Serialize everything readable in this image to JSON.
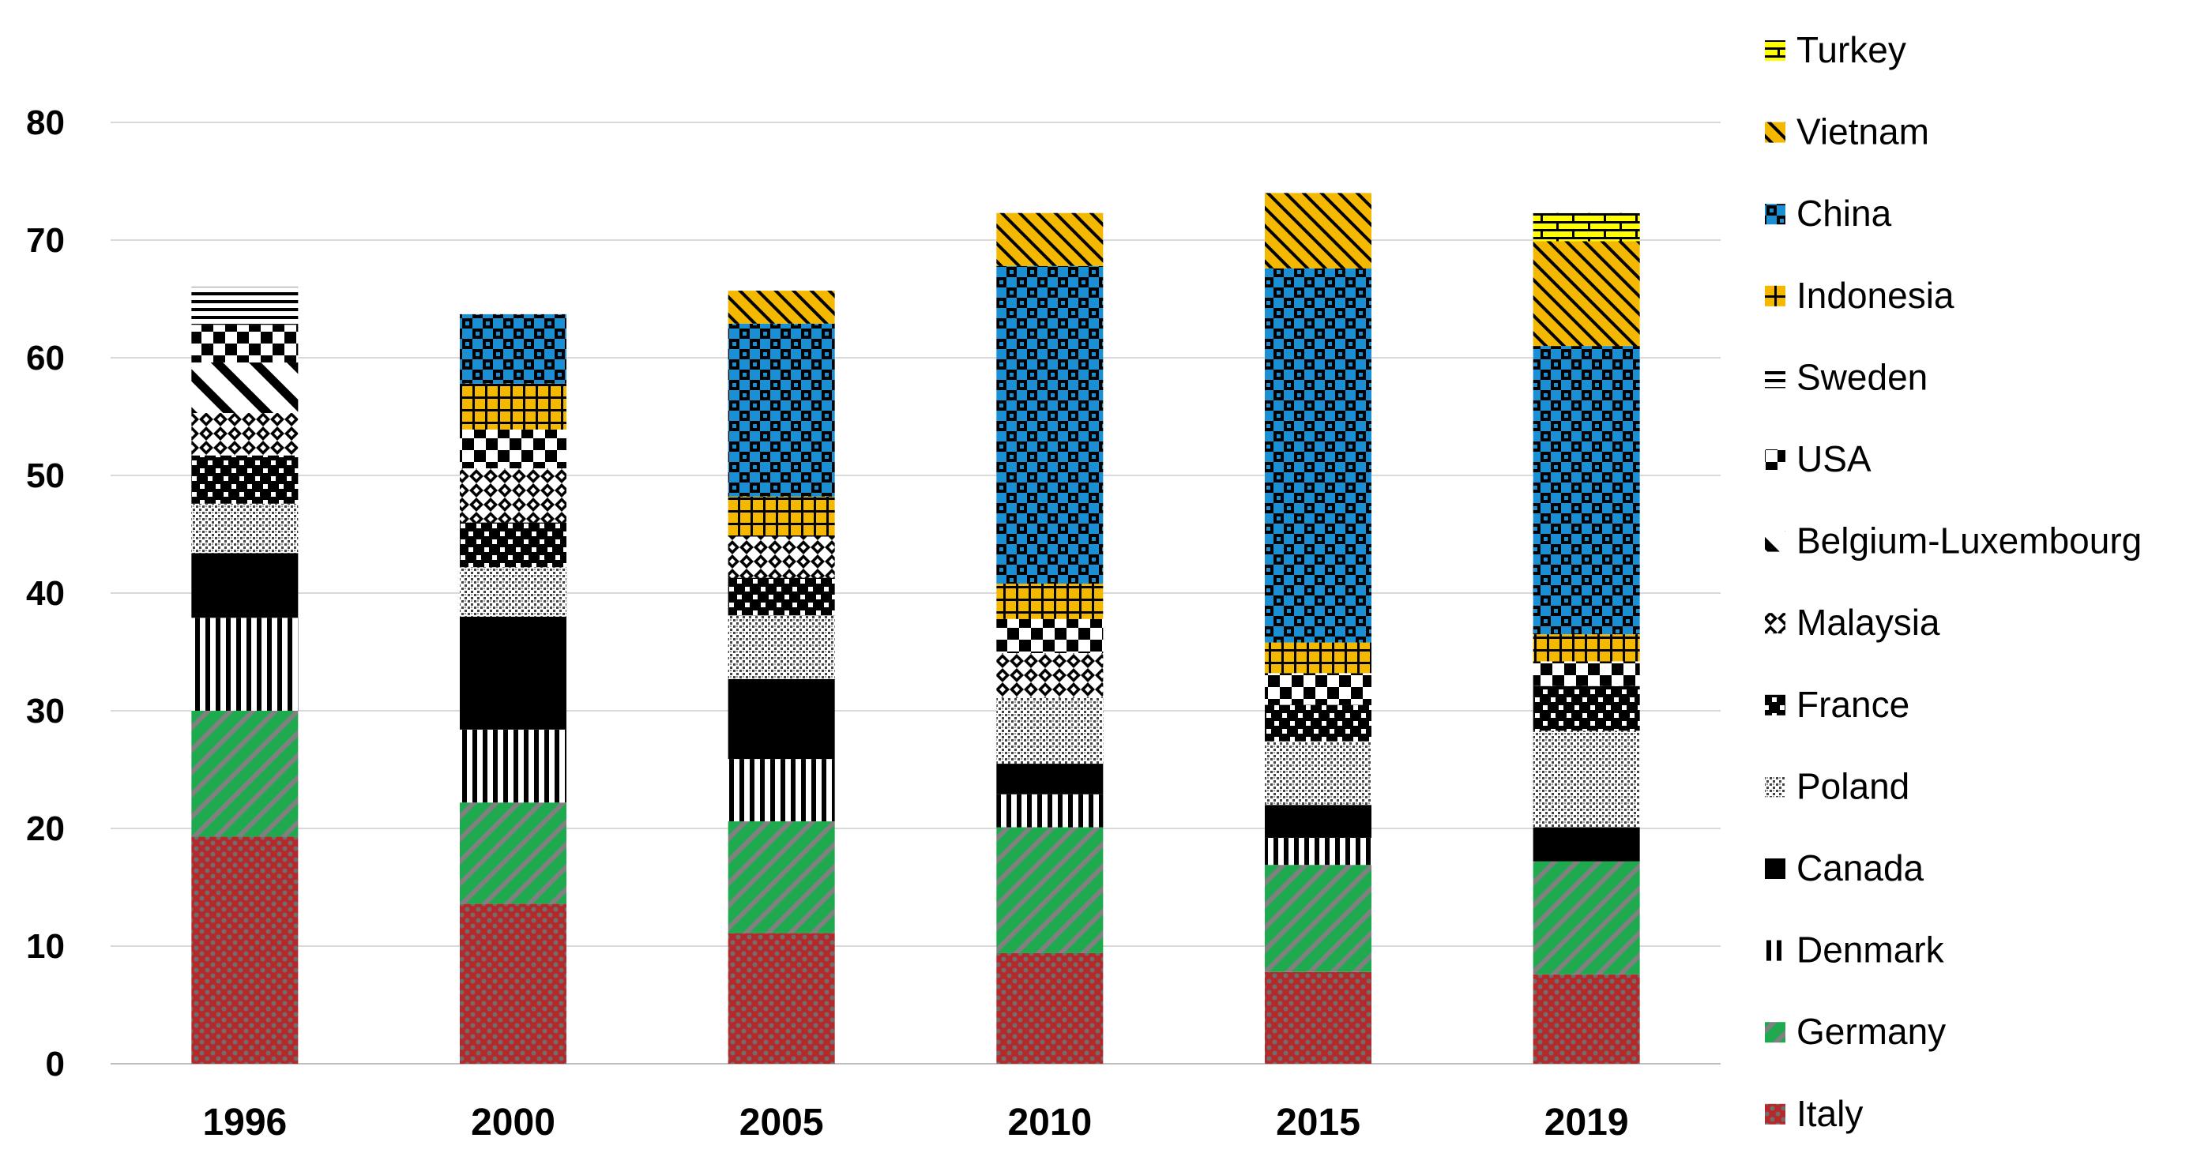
{
  "chart_data": {
    "type": "bar",
    "stacked": true,
    "categories": [
      "1996",
      "2000",
      "2005",
      "2010",
      "2015",
      "2019"
    ],
    "ylim": [
      0,
      80
    ],
    "yticks": [
      0,
      10,
      20,
      30,
      40,
      50,
      60,
      70,
      80
    ],
    "grid": true,
    "legend_position": "right",
    "title": "",
    "xlabel": "",
    "ylabel": "",
    "series": [
      {
        "name": "Italy",
        "color": "#b5292a",
        "pattern": "dots",
        "values": [
          19.3,
          13.6,
          11.1,
          9.4,
          7.8,
          7.6
        ]
      },
      {
        "name": "Germany",
        "color": "#1faa4f",
        "pattern": "diagonal-up",
        "values": [
          10.7,
          8.6,
          9.5,
          10.7,
          9.1,
          9.6
        ]
      },
      {
        "name": "Denmark",
        "color": "#ffffff",
        "pattern": "vertical",
        "values": [
          7.9,
          6.2,
          5.3,
          2.8,
          2.3,
          0
        ]
      },
      {
        "name": "Canada",
        "color": "#000000",
        "pattern": "solid",
        "values": [
          5.5,
          9.6,
          6.8,
          2.6,
          2.8,
          2.9
        ]
      },
      {
        "name": "Poland",
        "color": "#ffffff",
        "pattern": "dense-dots",
        "values": [
          4.2,
          4.2,
          5.4,
          5.6,
          5.4,
          8.2
        ]
      },
      {
        "name": "France",
        "color": "#000000",
        "pattern": "checker-dark",
        "values": [
          4.1,
          3.8,
          3.2,
          0,
          3.1,
          3.8
        ]
      },
      {
        "name": "Malaysia",
        "color": "#ffffff",
        "pattern": "diamond",
        "values": [
          3.6,
          4.6,
          3.5,
          3.8,
          0,
          0
        ]
      },
      {
        "name": "Belgium-Luxembourg",
        "color": "#ffffff",
        "pattern": "diagonal-down-wide",
        "values": [
          4.3,
          0,
          0,
          0,
          0,
          0
        ]
      },
      {
        "name": "USA",
        "color": "#ffffff",
        "pattern": "checker",
        "values": [
          3.2,
          3.3,
          0,
          2.9,
          2.7,
          2.1
        ]
      },
      {
        "name": "Sweden",
        "color": "#ffffff",
        "pattern": "horizontal",
        "values": [
          3.2,
          0,
          0,
          0,
          0,
          0
        ]
      },
      {
        "name": "Indonesia",
        "color": "#f5b800",
        "pattern": "grid",
        "values": [
          0,
          3.9,
          3.4,
          3.0,
          2.6,
          2.3
        ]
      },
      {
        "name": "China",
        "color": "#1a8fd4",
        "pattern": "checker-blue",
        "values": [
          0,
          5.9,
          14.7,
          27.0,
          31.8,
          24.5
        ]
      },
      {
        "name": "Vietnam",
        "color": "#f5b800",
        "pattern": "diagonal-down",
        "values": [
          0,
          0,
          2.8,
          4.5,
          6.4,
          8.9
        ]
      },
      {
        "name": "Turkey",
        "color": "#ffff00",
        "pattern": "brick",
        "values": [
          0,
          0,
          0,
          0,
          0,
          2.4
        ]
      }
    ],
    "legend_order": [
      "Turkey",
      "Vietnam",
      "China",
      "Indonesia",
      "Sweden",
      "USA",
      "Belgium-Luxembourg",
      "Malaysia",
      "France",
      "Poland",
      "Canada",
      "Denmark",
      "Germany",
      "Italy"
    ]
  }
}
